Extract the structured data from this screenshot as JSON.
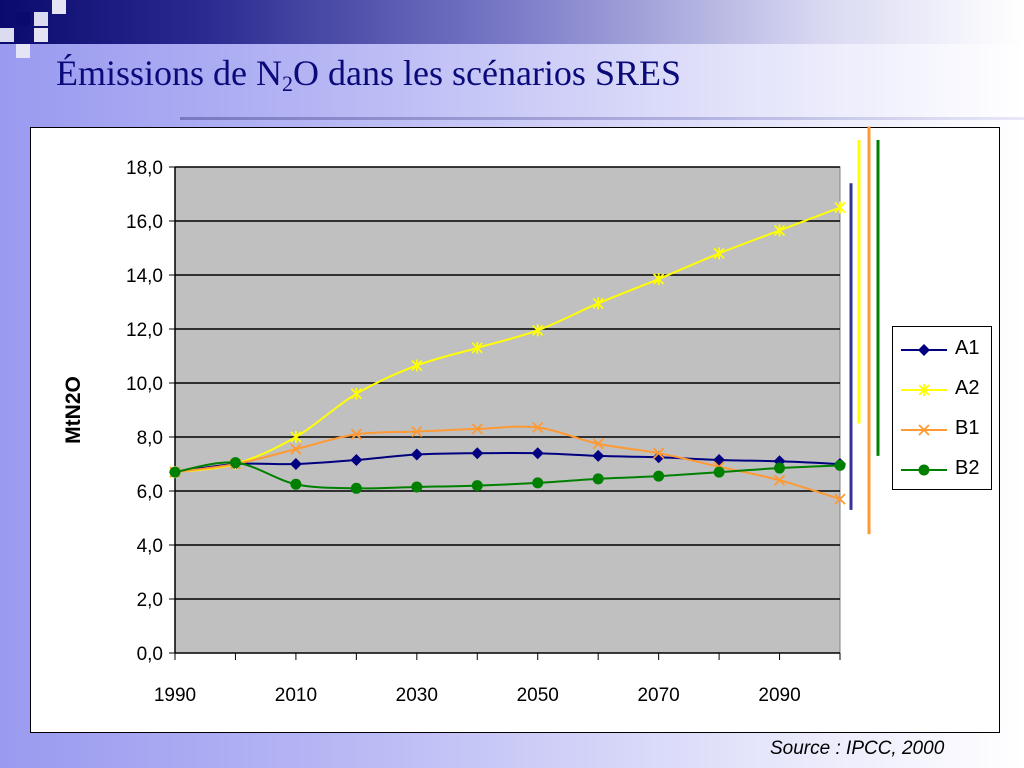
{
  "slide": {
    "title_pre": "Émissions de N",
    "title_sub": "2",
    "title_post": "O dans les scénarios SRES",
    "source": "Source : IPCC, 2000"
  },
  "chart_data": {
    "type": "line",
    "title": "",
    "xlabel": "",
    "ylabel": "MtN2O",
    "ylim": [
      0,
      18
    ],
    "yticks": [
      "0,0",
      "2,0",
      "4,0",
      "6,0",
      "8,0",
      "10,0",
      "12,0",
      "14,0",
      "16,0",
      "18,0"
    ],
    "xticks": [
      "1990",
      "2010",
      "2030",
      "2050",
      "2070",
      "2090"
    ],
    "xlim": [
      1990,
      2100
    ],
    "x": [
      1990,
      2000,
      2010,
      2020,
      2030,
      2040,
      2050,
      2060,
      2070,
      2080,
      2090,
      2100
    ],
    "grid": true,
    "legend_position": "right",
    "plot_background": "#c0c0c0",
    "series": [
      {
        "name": "A1",
        "color": "#000080",
        "marker": "diamond",
        "values": [
          6.7,
          7.0,
          7.0,
          7.15,
          7.35,
          7.4,
          7.4,
          7.3,
          7.25,
          7.15,
          7.1,
          7.0
        ]
      },
      {
        "name": "A2",
        "color": "#ffff00",
        "marker": "star",
        "values": [
          6.7,
          7.0,
          8.0,
          9.6,
          10.65,
          11.3,
          11.95,
          12.95,
          13.85,
          14.8,
          15.65,
          16.5
        ]
      },
      {
        "name": "B1",
        "color": "#ff9933",
        "marker": "x",
        "values": [
          6.7,
          7.0,
          7.55,
          8.1,
          8.2,
          8.3,
          8.35,
          7.75,
          7.4,
          6.9,
          6.4,
          5.7
        ]
      },
      {
        "name": "B2",
        "color": "#008000",
        "marker": "circle",
        "values": [
          6.7,
          7.05,
          6.25,
          6.1,
          6.15,
          6.2,
          6.3,
          6.45,
          6.55,
          6.7,
          6.85,
          6.95
        ]
      }
    ],
    "range_bars": [
      {
        "color": "#333399",
        "min": 5.3,
        "max": 17.4
      },
      {
        "color": "#ffff00",
        "min": 8.5,
        "max": 19.0
      },
      {
        "color": "#ff9933",
        "min": 4.4,
        "max": 19.5
      },
      {
        "color": "#008000",
        "min": 7.3,
        "max": 19.0
      }
    ]
  }
}
